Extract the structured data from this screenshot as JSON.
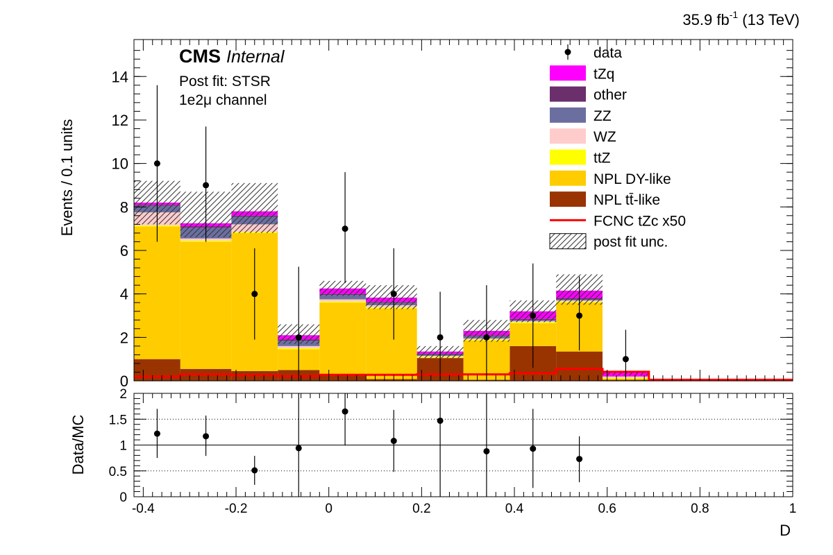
{
  "lumi_label": "35.9 fb",
  "lumi_superscript": "-1",
  "lumi_energy": " (13 TeV)",
  "experiment": "CMS",
  "status": "Internal",
  "fit_label": "Post fit: STSR",
  "channel_label": "1e2μ channel",
  "colors": {
    "tZq": "#ff00ff",
    "other": "#6b2f6b",
    "ZZ": "#6b6fa0",
    "WZ": "#ffcccc",
    "ttZ": "#ffff00",
    "NPL_DY": "#ffcc00",
    "NPL_tt": "#993300",
    "FCNC": "#ff0000"
  },
  "chart_data": [
    {
      "type": "bar",
      "stacked": true,
      "xlabel": "D",
      "ylabel": "Events / 0.1 units",
      "xlim": [
        -0.42,
        1.0
      ],
      "ylim": [
        0,
        15.7
      ],
      "yticks": [
        0,
        2,
        4,
        6,
        8,
        10,
        12,
        14
      ],
      "bin_edges": [
        -0.42,
        -0.32,
        -0.21,
        -0.11,
        -0.02,
        0.08,
        0.19,
        0.29,
        0.39,
        0.49,
        0.59,
        0.69,
        0.8,
        1.0
      ],
      "series": [
        {
          "name": "NPL tt̄-like",
          "values": [
            1.0,
            0.55,
            0.45,
            0.5,
            0.3,
            0.08,
            1.05,
            0.05,
            1.6,
            1.35,
            0.05,
            0.0,
            0.0
          ]
        },
        {
          "name": "NPL DY-like",
          "values": [
            6.1,
            5.85,
            6.35,
            0.95,
            3.3,
            3.25,
            0.0,
            1.8,
            1.05,
            2.25,
            0.05,
            0.0,
            0.0
          ]
        },
        {
          "name": "ttZ",
          "values": [
            0.05,
            0.05,
            0.05,
            0.05,
            0.05,
            0.05,
            0.05,
            0.05,
            0.05,
            0.05,
            0.05,
            0.0,
            0.0
          ]
        },
        {
          "name": "WZ",
          "values": [
            0.6,
            0.1,
            0.35,
            0.1,
            0.1,
            0.1,
            0.05,
            0.05,
            0.05,
            0.05,
            0.05,
            0.0,
            0.0
          ]
        },
        {
          "name": "ZZ",
          "values": [
            0.3,
            0.5,
            0.35,
            0.25,
            0.2,
            0.1,
            0.05,
            0.1,
            0.05,
            0.05,
            0.0,
            0.0,
            0.0
          ]
        },
        {
          "name": "other",
          "values": [
            0.05,
            0.05,
            0.05,
            0.05,
            0.05,
            0.05,
            0.05,
            0.05,
            0.05,
            0.05,
            0.0,
            0.0,
            0.0
          ]
        },
        {
          "name": "tZq",
          "values": [
            0.1,
            0.15,
            0.2,
            0.2,
            0.25,
            0.2,
            0.1,
            0.2,
            0.35,
            0.35,
            0.2,
            0.0,
            0.0
          ]
        }
      ],
      "post_fit_unc": [
        [
          7.2,
          9.2
        ],
        [
          6.6,
          8.7
        ],
        [
          6.8,
          9.1
        ],
        [
          1.7,
          2.6
        ],
        [
          3.9,
          4.6
        ],
        [
          3.3,
          4.4
        ],
        [
          1.05,
          1.6
        ],
        [
          1.8,
          2.8
        ],
        [
          2.7,
          3.7
        ],
        [
          3.5,
          4.9
        ],
        [
          0.25,
          0.45
        ],
        [
          0.0,
          0.0
        ],
        [
          0.0,
          0.0
        ]
      ],
      "fcnc_line": {
        "name": "FCNC tZc x50",
        "values": [
          0.2,
          0.3,
          0.25,
          0.22,
          0.28,
          0.28,
          0.3,
          0.3,
          0.35,
          0.55,
          0.42,
          0.05,
          0.05
        ]
      },
      "data_points": {
        "name": "data",
        "x": [
          -0.37,
          -0.265,
          -0.16,
          -0.065,
          0.035,
          0.14,
          0.24,
          0.34,
          0.44,
          0.54,
          0.64
        ],
        "y": [
          10,
          9,
          4,
          2,
          7,
          4,
          2,
          2,
          3,
          3,
          1
        ],
        "err_up": [
          3.6,
          2.7,
          2.1,
          3.25,
          2.6,
          2.1,
          2.1,
          2.4,
          2.4,
          1.8,
          1.35
        ],
        "err_down": [
          3.6,
          2.6,
          2.1,
          2.0,
          2.5,
          2.1,
          2.0,
          2.0,
          2.4,
          1.6,
          0.85
        ]
      },
      "legend": {
        "placement": "top-right",
        "entries": [
          {
            "label": "data",
            "kind": "marker"
          },
          {
            "label": "tZq",
            "kind": "fill",
            "key": "tZq"
          },
          {
            "label": "other",
            "kind": "fill",
            "key": "other"
          },
          {
            "label": "ZZ",
            "kind": "fill",
            "key": "ZZ"
          },
          {
            "label": "WZ",
            "kind": "fill",
            "key": "WZ"
          },
          {
            "label": "ttZ",
            "kind": "fill",
            "key": "ttZ"
          },
          {
            "label": "NPL DY-like",
            "kind": "fill",
            "key": "NPL_DY"
          },
          {
            "label": "NPL tt̄-like",
            "kind": "fill",
            "key": "NPL_tt"
          },
          {
            "label": "FCNC tZc x50",
            "kind": "line",
            "key": "FCNC"
          },
          {
            "label": "post fit unc.",
            "kind": "hatch"
          }
        ]
      }
    },
    {
      "type": "scatter",
      "xlabel": "D",
      "ylabel": "Data/MC",
      "xlim": [
        -0.42,
        1.0
      ],
      "ylim": [
        0,
        2
      ],
      "yticks": [
        0,
        0.5,
        1,
        1.5,
        2
      ],
      "ytick_labels": [
        "0",
        "0.5",
        "1",
        "1.5",
        "2"
      ],
      "xticks": [
        -0.4,
        -0.2,
        0,
        0.2,
        0.4,
        0.6,
        0.8,
        1
      ],
      "xtick_labels": [
        "-0.4",
        "-0.2",
        "0",
        "0.2",
        "0.4",
        "0.6",
        "0.8",
        "1"
      ],
      "grid": "dotted at 0.5 and 1.5, solid at 1",
      "points": {
        "x": [
          -0.37,
          -0.265,
          -0.16,
          -0.065,
          0.035,
          0.14,
          0.24,
          0.34,
          0.44,
          0.54
        ],
        "y": [
          1.22,
          1.17,
          0.51,
          0.94,
          1.65,
          1.08,
          1.47,
          0.88,
          0.93,
          0.73
        ],
        "err_up": [
          0.48,
          0.4,
          0.28,
          1.06,
          0.6,
          0.6,
          0.53,
          1.12,
          0.77,
          0.44
        ],
        "err_down": [
          0.47,
          0.38,
          0.28,
          0.94,
          0.66,
          0.6,
          1.47,
          0.88,
          0.76,
          0.45
        ]
      }
    }
  ]
}
